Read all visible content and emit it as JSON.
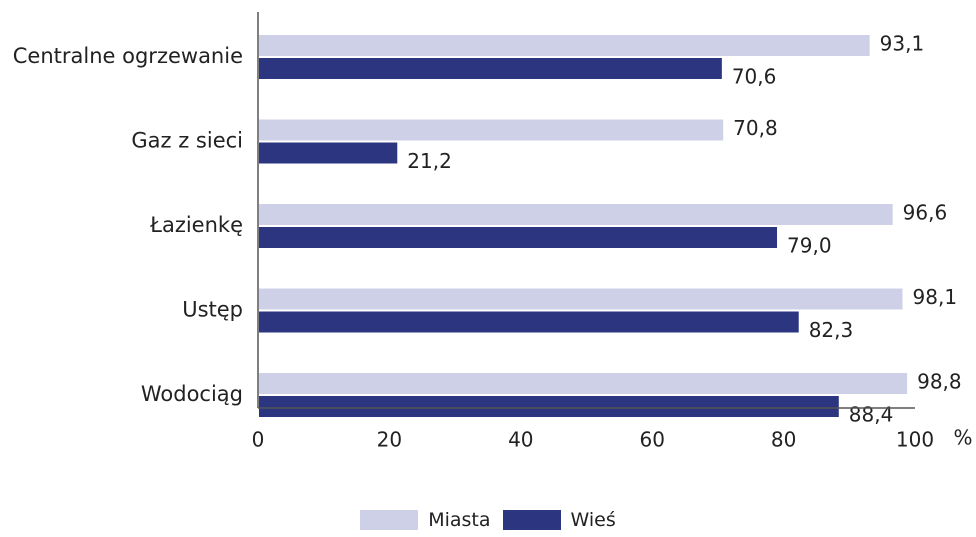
{
  "chart_data": {
    "type": "bar",
    "orientation": "horizontal",
    "categories": [
      "Centralne ogrzewanie",
      "Gaz z sieci",
      "Łazienkę",
      "Ustęp",
      "Wodociąg"
    ],
    "series": [
      {
        "name": "Miasta",
        "values": [
          93.1,
          70.8,
          96.6,
          98.1,
          98.8
        ],
        "labels": [
          "93,1",
          "70,8",
          "96,6",
          "98,1",
          "98,8"
        ],
        "color": "#cdd0e6"
      },
      {
        "name": "Wieś",
        "values": [
          70.6,
          21.2,
          79.0,
          82.3,
          88.4
        ],
        "labels": [
          "70,6",
          "21,2",
          "79,0",
          "82,3",
          "88,4"
        ],
        "color": "#2b3580"
      }
    ],
    "xlim": [
      0,
      100
    ],
    "xticks": [
      "0",
      "20",
      "40",
      "60",
      "80",
      "100"
    ],
    "xunit": "%",
    "grid": false,
    "legend_position": "bottom"
  }
}
